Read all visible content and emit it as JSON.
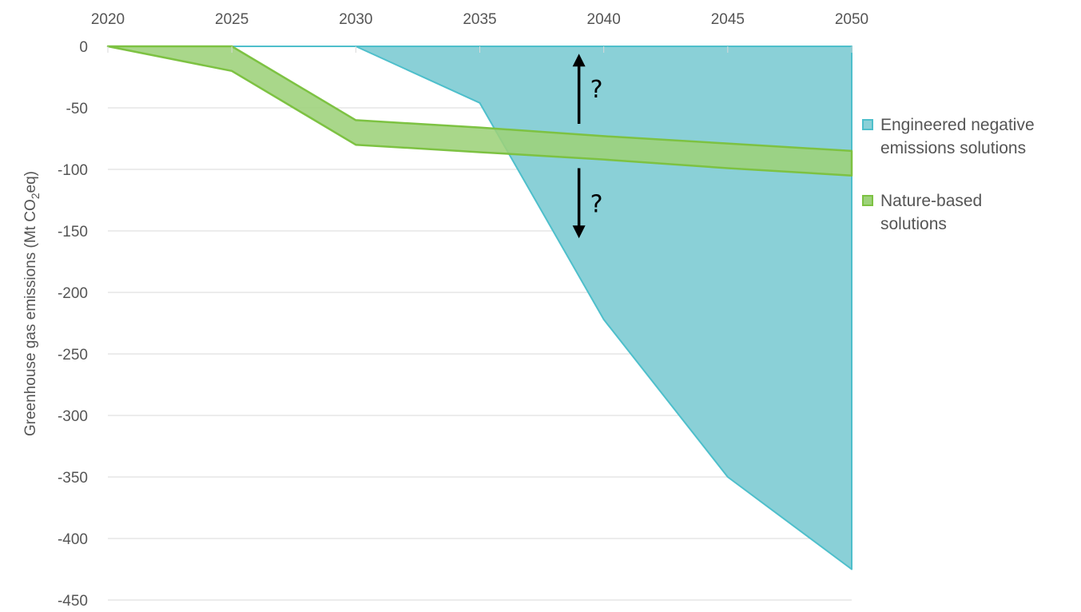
{
  "chart_data": {
    "type": "area",
    "x_axis_position": "top",
    "x_ticks": [
      "2020",
      "2025",
      "2030",
      "2035",
      "2040",
      "2045",
      "2050"
    ],
    "y_ticks": [
      "0",
      "-50",
      "-100",
      "-150",
      "-200",
      "-250",
      "-300",
      "-350",
      "-400",
      "-450"
    ],
    "xlim": [
      2020,
      2050
    ],
    "ylim": [
      -450,
      0
    ],
    "ylabel_prefix": "Greenhouse gas emissions (Mt CO",
    "ylabel_sub": "2",
    "ylabel_suffix": "eq)",
    "grid": "horizontal",
    "legend_position": "right",
    "series": [
      {
        "name": "Engineered negative emissions solutions",
        "legend_lines": [
          "Engineered negative",
          "emissions solutions"
        ],
        "kind": "area",
        "color": "#8ad0d7",
        "edge_color": "#4ebfcb",
        "x": [
          2020,
          2025,
          2030,
          2035,
          2040,
          2045,
          2050
        ],
        "y": [
          0,
          0,
          0,
          -46,
          -222,
          -350,
          -425
        ]
      },
      {
        "name": "Nature-based solutions",
        "legend_lines": [
          "Nature-based",
          "solutions"
        ],
        "kind": "band",
        "color": "#9dd27a",
        "edge_color": "#7dc242",
        "x": [
          2020,
          2025,
          2030,
          2035,
          2040,
          2045,
          2050
        ],
        "upper": [
          0,
          0,
          -60,
          -66,
          -73,
          -79,
          -85
        ],
        "lower": [
          0,
          -20,
          -80,
          -86,
          -92,
          -99,
          -105
        ]
      }
    ],
    "annotations": [
      {
        "label": "?",
        "direction": "up",
        "x": 2039,
        "from": -63,
        "to": -6
      },
      {
        "label": "?",
        "direction": "down",
        "x": 2039,
        "from": -99,
        "to": -156
      }
    ]
  }
}
